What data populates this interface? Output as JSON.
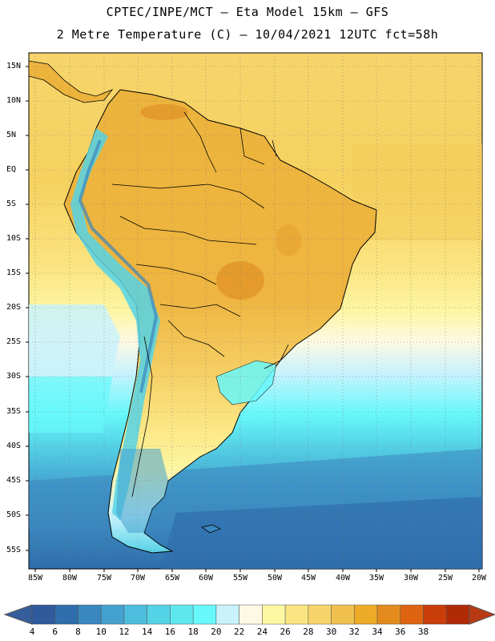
{
  "title": {
    "line1": "CPTEC/INPE/MCT –  Eta Model 15km – GFS",
    "line2": "2 Metre Temperature (C) – 10/04/2021 12UTC fct=58h"
  },
  "latitude_labels": [
    "15N",
    "10N",
    "5N",
    "EQ",
    "5S",
    "10S",
    "15S",
    "20S",
    "25S",
    "30S",
    "35S",
    "40S",
    "45S",
    "50S",
    "55S"
  ],
  "longitude_labels": [
    "85W",
    "80W",
    "75W",
    "70W",
    "65W",
    "60W",
    "55W",
    "50W",
    "45W",
    "40W",
    "35W",
    "30W",
    "25W",
    "20W"
  ],
  "colorbar": {
    "values": [
      "4",
      "6",
      "8",
      "10",
      "12",
      "14",
      "16",
      "18",
      "20",
      "22",
      "24",
      "26",
      "28",
      "30",
      "32",
      "34",
      "36",
      "38"
    ],
    "colors": [
      "#2f5a9c",
      "#2f6eac",
      "#3a86be",
      "#44a1cf",
      "#4dbddd",
      "#55d3e6",
      "#5fe7ee",
      "#67f8fb",
      "#c9f2fc",
      "#fdf9e3",
      "#fdf6a3",
      "#fbe582",
      "#f7d46b",
      "#f0c04e",
      "#eeab27",
      "#e48b1e",
      "#de6411",
      "#c93d0a",
      "#b02a06"
    ],
    "under_color": "#365e9c",
    "over_color": "#b83a14"
  }
}
